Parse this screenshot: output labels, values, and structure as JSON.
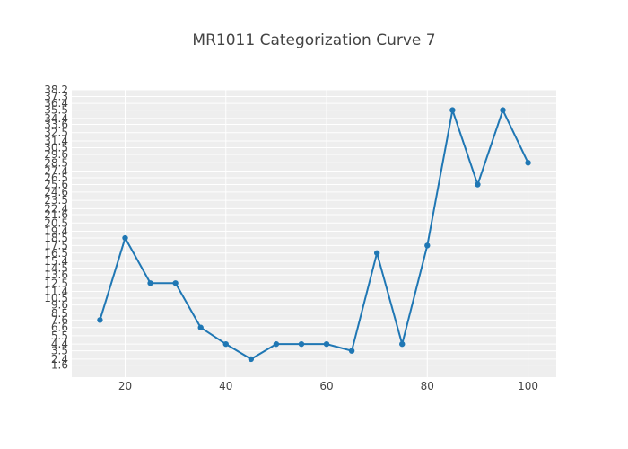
{
  "chart_data": {
    "type": "line",
    "title": "MR1011 Categorization Curve 7",
    "xlabel": "",
    "ylabel": "",
    "x": [
      15,
      20,
      25,
      30,
      35,
      40,
      45,
      50,
      55,
      60,
      65,
      70,
      75,
      80,
      85,
      90,
      95,
      100
    ],
    "series": [
      {
        "values": [
          7.6,
          18.5,
          12.5,
          12.5,
          6.6,
          4.4,
          2.4,
          4.4,
          4.4,
          4.4,
          3.5,
          16.5,
          4.4,
          17.5,
          35.5,
          25.6,
          35.5,
          28.5
        ]
      }
    ],
    "xlim": [
      9.4,
      105.6
    ],
    "ylim": [
      0,
      38.2
    ],
    "x_ticks": [
      20,
      40,
      60,
      80,
      100
    ],
    "x_tick_labels": [
      "20",
      "40",
      "60",
      "80",
      "100"
    ],
    "y_tick_labels": [
      "1.6",
      "2.4",
      "3.5",
      "4.4",
      "5.5",
      "6.6",
      "7.6",
      "8.5",
      "9.6",
      "10.5",
      "11.4",
      "12.5",
      "13.6",
      "14.5",
      "15.4",
      "16.5",
      "17.5",
      "18.5",
      "19.4",
      "20.5",
      "21.6",
      "22.4",
      "23.5",
      "24.6",
      "25.6",
      "26.5",
      "27.4",
      "28.5",
      "29.6",
      "30.5",
      "31.4",
      "32.5",
      "33.6",
      "34.4",
      "35.5",
      "36.4",
      "37.3",
      "38.2"
    ],
    "grid": true,
    "colors": {
      "line": "#1f77b4",
      "plot_bg": "#eeeeee",
      "grid": "#ffffff",
      "text": "#444444"
    }
  }
}
